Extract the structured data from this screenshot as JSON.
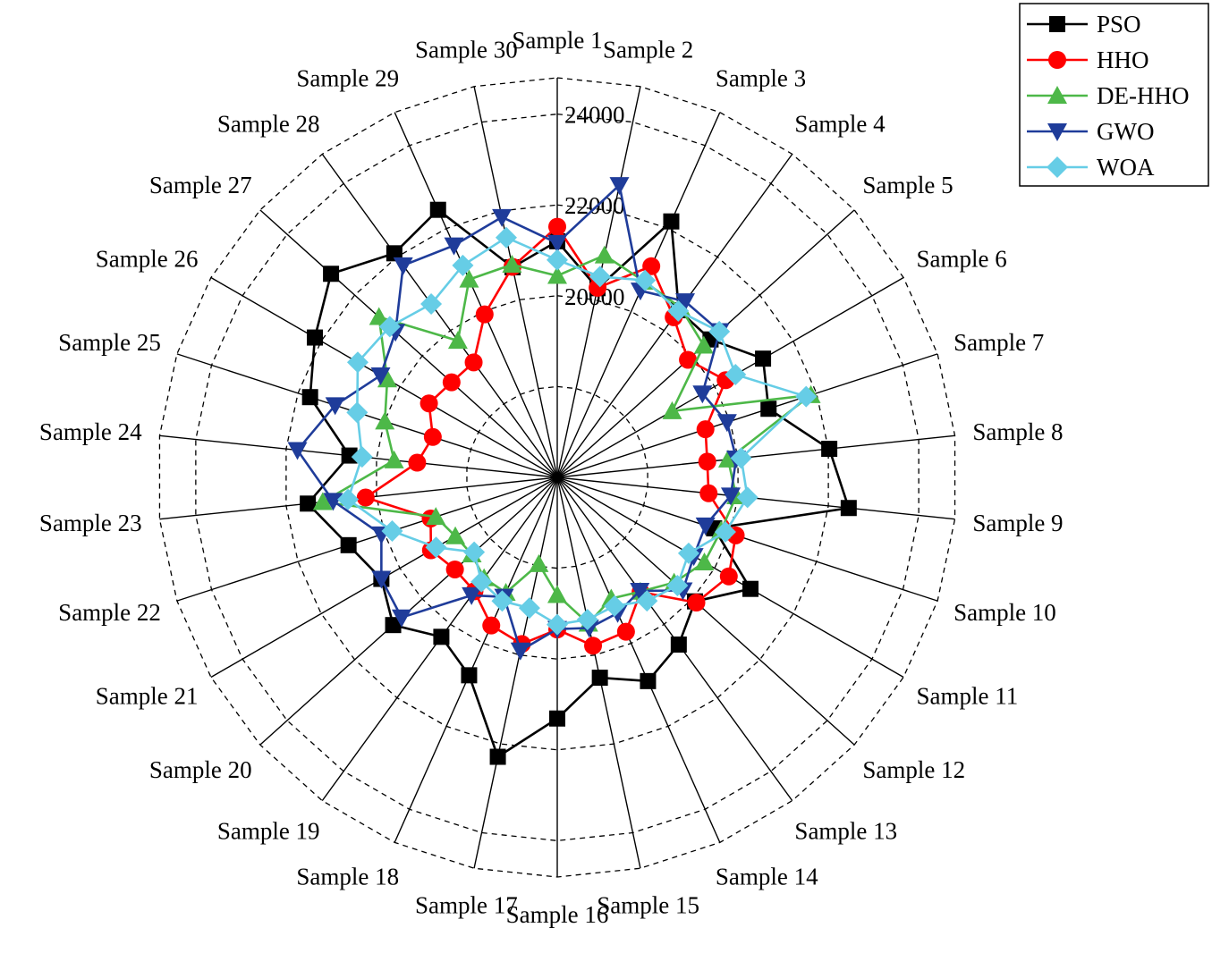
{
  "chart_data": {
    "type": "radar",
    "title": "",
    "categories": [
      "Sample 1",
      "Sample 2",
      "Sample 3",
      "Sample 4",
      "Sample 5",
      "Sample 6",
      "Sample 7",
      "Sample 8",
      "Sample 9",
      "Sample 10",
      "Sample 11",
      "Sample 12",
      "Sample 13",
      "Sample 14",
      "Sample 15",
      "Sample 16",
      "Sample 17",
      "Sample 18",
      "Sample 19",
      "Sample 20",
      "Sample 21",
      "Sample 22",
      "Sample 23",
      "Sample 24",
      "Sample 25",
      "Sample 26",
      "Sample 27",
      "Sample 28",
      "Sample 29",
      "Sample 30"
    ],
    "rlim": [
      16000,
      24800
    ],
    "ticks": [
      20000,
      22000,
      24000
    ],
    "tick_labels": [
      "20000",
      "22000",
      "24000"
    ],
    "grid": "dashed rings every 2000",
    "legend_position": "top-right",
    "series": [
      {
        "name": "PSO",
        "color": "#000000",
        "marker": "square",
        "values": [
          21200,
          20260,
          22170,
          20550,
          20540,
          21230,
          20890,
          22020,
          22450,
          19630,
          20910,
          20080,
          20550,
          20910,
          20510,
          21310,
          22290,
          20770,
          20340,
          20860,
          20470,
          20830,
          21520,
          20600,
          21720,
          22160,
          22700,
          22100,
          22450,
          20730
        ]
      },
      {
        "name": "HHO",
        "color": "#ff0000",
        "marker": "circle",
        "values": [
          21520,
          20270,
          21090,
          20360,
          19870,
          20280,
          19430,
          19320,
          19350,
          20130,
          20360,
          20120,
          19120,
          19720,
          19790,
          19350,
          19750,
          19570,
          19100,
          19030,
          19210,
          18930,
          20240,
          19100,
          18880,
          19260,
          19130,
          19130,
          19930,
          20740
        ]
      },
      {
        "name": "DE-HHO",
        "color": "#4db848",
        "marker": "triangle-up",
        "values": [
          20440,
          21000,
          20720,
          20620,
          20340,
          18920,
          21870,
          19780,
          19960,
          19790,
          19740,
          19460,
          19110,
          18920,
          19290,
          18590,
          17950,
          18780,
          18740,
          18530,
          18590,
          18810,
          21190,
          19610,
          19990,
          20320,
          21280,
          19720,
          20770,
          20790
        ]
      },
      {
        "name": "GWO",
        "color": "#1f3c9a",
        "marker": "triangle-down",
        "values": [
          21160,
          22580,
          20500,
          20790,
          20810,
          19690,
          19930,
          19960,
          19840,
          19430,
          19470,
          19720,
          19090,
          19270,
          19390,
          19340,
          19900,
          18880,
          19210,
          20610,
          20470,
          20070,
          20960,
          21750,
          21140,
          20490,
          20790,
          21770,
          21590,
          21860
        ]
      },
      {
        "name": "WOA",
        "color": "#66cde6",
        "marker": "diamond",
        "values": [
          20790,
          20520,
          20750,
          20530,
          20800,
          20530,
          21760,
          20070,
          20210,
          19890,
          19340,
          19560,
          19360,
          19100,
          19200,
          19240,
          18940,
          18980,
          18840,
          18460,
          19080,
          19820,
          20630,
          20320,
          20630,
          21070,
          20960,
          20720,
          21110,
          21400
        ]
      }
    ]
  }
}
